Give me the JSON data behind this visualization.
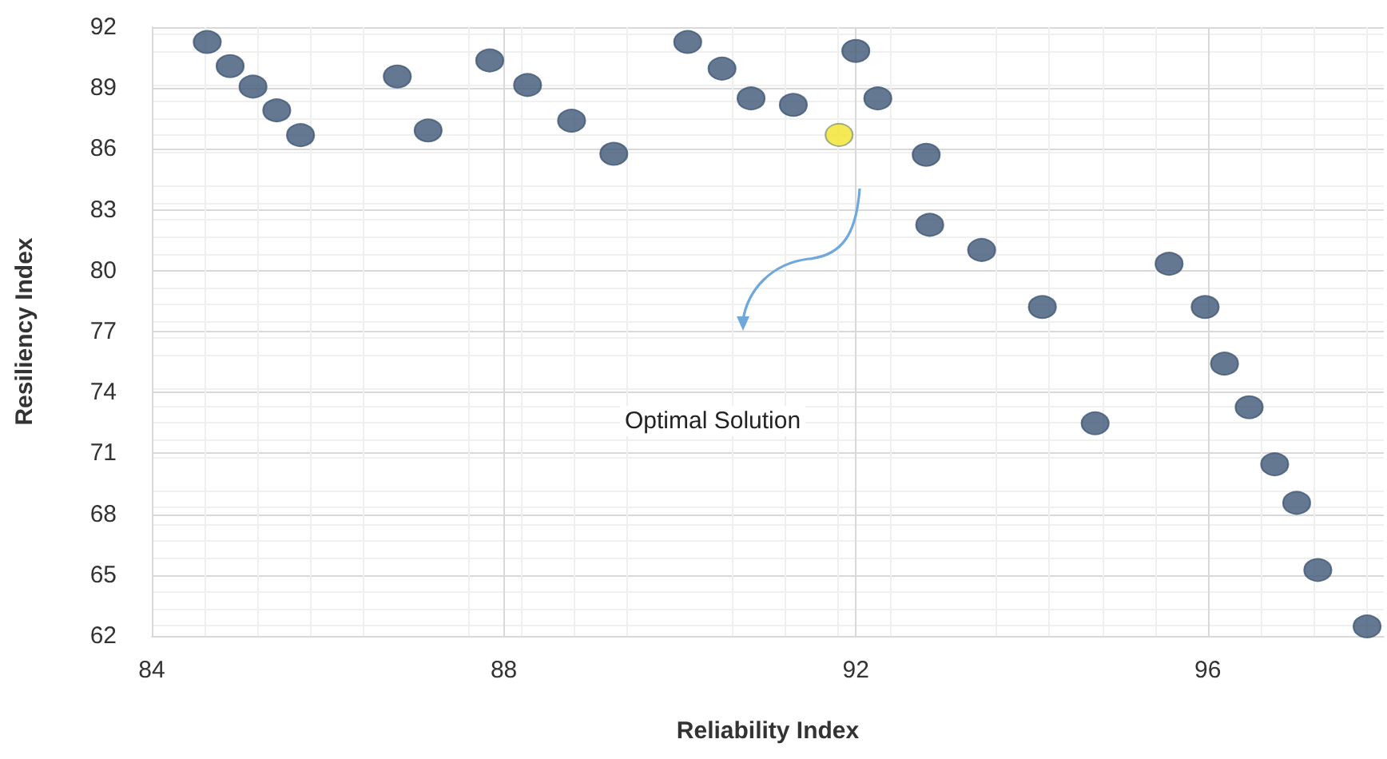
{
  "chart_data": {
    "type": "scatter",
    "xlabel": "Reliability Index",
    "ylabel": "Resiliency Index",
    "annotations": [
      "Optimal Solution"
    ],
    "xlim": [
      84,
      98
    ],
    "xticks": [
      84,
      88,
      92,
      96
    ],
    "ylim": [
      62,
      92
    ],
    "yticks": [
      62,
      65,
      68,
      71,
      74,
      77,
      80,
      83,
      86,
      89,
      92
    ],
    "grid": true,
    "marker": "circle",
    "series": [
      {
        "color": "#3e5675",
        "x": [
          84.63,
          84.89,
          85.15,
          85.42,
          85.69,
          86.79,
          87.14,
          87.84,
          88.27,
          88.77,
          89.25,
          90.09,
          90.48,
          90.81,
          91.29,
          92.0,
          92.25,
          92.8,
          92.84,
          93.43,
          94.12,
          95.56,
          95.97,
          96.19,
          96.47,
          94.72,
          96.76,
          97.01,
          97.25,
          97.81
        ],
        "values": [
          91.27,
          90.08,
          89.07,
          87.9,
          86.68,
          89.57,
          86.91,
          90.36,
          89.15,
          87.39,
          85.76,
          91.27,
          89.96,
          88.49,
          88.17,
          90.83,
          88.49,
          85.71,
          82.26,
          81.02,
          78.21,
          80.34,
          78.21,
          75.42,
          73.27,
          72.48,
          70.46,
          68.56,
          65.25,
          62.47
        ]
      },
      {
        "color": "#f2e52c",
        "x": [
          91.81
        ],
        "values": [
          86.69
        ]
      }
    ]
  }
}
